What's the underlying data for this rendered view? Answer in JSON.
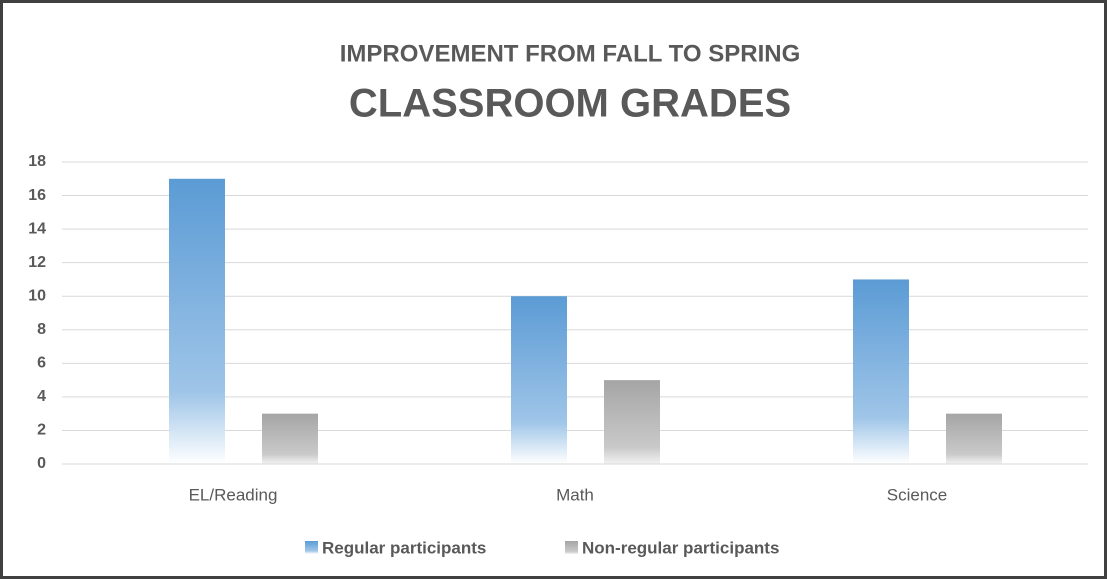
{
  "chart_data": {
    "type": "bar",
    "subtitle": "IMPROVEMENT FROM FALL TO SPRING",
    "title": "CLASSROOM GRADES",
    "categories": [
      "EL/Reading",
      "Math",
      "Science"
    ],
    "series": [
      {
        "name": "Regular participants",
        "color": "#5b9bd5",
        "values": [
          17,
          10,
          11
        ]
      },
      {
        "name": "Non-regular participants",
        "color": "#a5a5a5",
        "values": [
          3,
          5,
          3
        ]
      }
    ],
    "ylim": [
      0,
      18
    ],
    "yticks": [
      0,
      2,
      4,
      6,
      8,
      10,
      12,
      14,
      16,
      18
    ],
    "grid": true,
    "legend": "bottom"
  }
}
